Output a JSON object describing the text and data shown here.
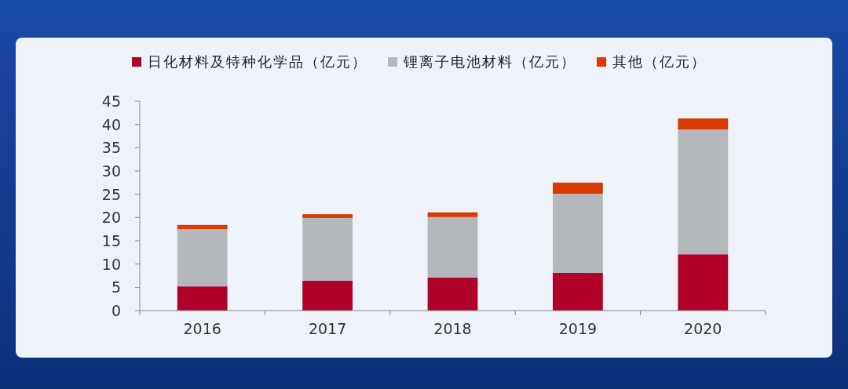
{
  "chart_data": {
    "type": "bar",
    "stacked": true,
    "categories": [
      "2016",
      "2017",
      "2018",
      "2019",
      "2020"
    ],
    "series": [
      {
        "name": "日化材料及特种化学品（亿元）",
        "color": "#b0002a",
        "values": [
          5.2,
          6.4,
          7.1,
          8.1,
          12.1
        ]
      },
      {
        "name": "锂离子电池材料（亿元）",
        "color": "#b4b8ba",
        "values": [
          12.3,
          13.5,
          13.0,
          17.0,
          26.8
        ]
      },
      {
        "name": "其他（亿元）",
        "color": "#d83a00",
        "values": [
          0.9,
          0.8,
          1.0,
          2.4,
          2.4
        ]
      }
    ],
    "ylim": [
      0,
      45
    ],
    "yticks": [
      0,
      5,
      10,
      15,
      20,
      25,
      30,
      35,
      40,
      45
    ],
    "grid": false,
    "legend": "top"
  }
}
